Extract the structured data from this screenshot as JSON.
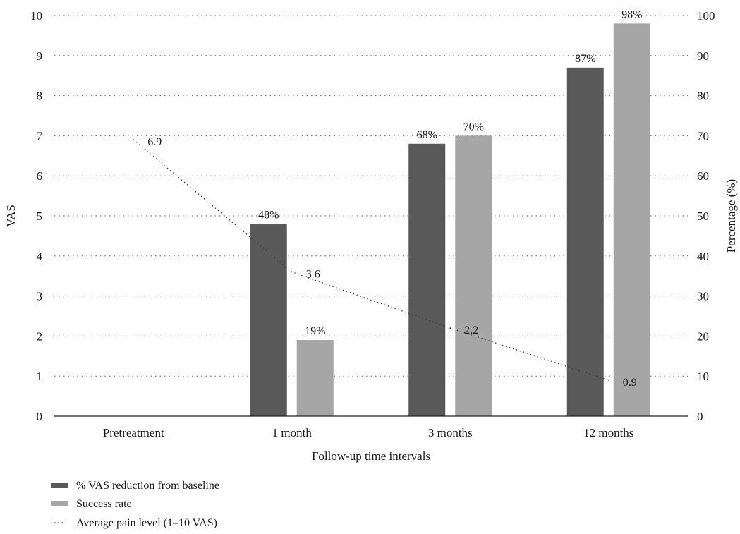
{
  "chart_data": {
    "type": "bar",
    "categories": [
      "Pretreatment",
      "1 month",
      "3 months",
      "12 months"
    ],
    "series": [
      {
        "name": "% VAS reduction from baseline",
        "type": "bar",
        "axis": "right",
        "color": "#595959",
        "values": [
          null,
          48,
          68,
          87
        ],
        "labels": [
          "",
          "48%",
          "68%",
          "87%"
        ]
      },
      {
        "name": "Success rate",
        "type": "bar",
        "axis": "right",
        "color": "#a6a6a6",
        "values": [
          null,
          19,
          70,
          98
        ],
        "labels": [
          "",
          "19%",
          "70%",
          "98%"
        ]
      },
      {
        "name": "Average pain level (1–10 VAS)",
        "type": "line",
        "style": "dotted",
        "axis": "left",
        "color": "#333333",
        "values": [
          6.9,
          3.6,
          2.2,
          0.9
        ],
        "labels": [
          "6.9",
          "3.6",
          "2.2",
          "0.9"
        ]
      }
    ],
    "xlabel": "Follow-up time intervals",
    "ylabel": "VAS",
    "y2label": "Percentage (%)",
    "ylim": [
      0,
      10
    ],
    "y2lim": [
      0,
      100
    ],
    "yticks": [
      "0",
      "1",
      "2",
      "3",
      "4",
      "5",
      "6",
      "7",
      "8",
      "9",
      "10"
    ],
    "y2ticks": [
      "0",
      "10",
      "20",
      "30",
      "40",
      "50",
      "60",
      "70",
      "80",
      "90",
      "100"
    ],
    "grid": "horizontal dotted",
    "legend": "bottom-left"
  }
}
